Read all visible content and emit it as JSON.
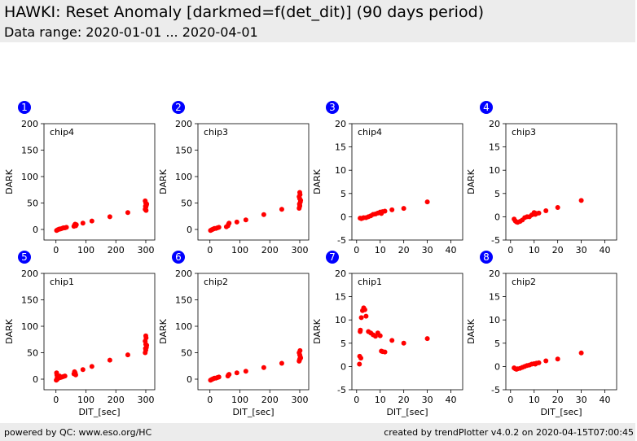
{
  "header": {
    "title": "HAWKI: Reset Anomaly [darkmed=f(det_dit)] (90 days period)",
    "subtitle": "Data range: 2020-01-01 ... 2020-04-01"
  },
  "footer": {
    "left": "powered by QC: www.eso.org/HC",
    "right": "created by trendPlotter v4.0.2 on 2020-04-15T07:00:45"
  },
  "colors": {
    "points": "#ff0000",
    "badge": "#0000ff",
    "header_bg": "#ececec"
  },
  "chart_data": [
    {
      "panel": "1",
      "type": "scatter",
      "label": "chip4",
      "xlabel": "",
      "ylabel": "DARK",
      "xlim": [
        -40,
        330
      ],
      "ylim": [
        -20,
        200
      ],
      "xticks": [
        0,
        100,
        200,
        300
      ],
      "yticks": [
        0,
        50,
        100,
        150,
        200
      ],
      "points": [
        [
          2,
          -2
        ],
        [
          5,
          -1
        ],
        [
          8,
          0
        ],
        [
          12,
          1
        ],
        [
          15,
          1
        ],
        [
          20,
          2
        ],
        [
          25,
          3
        ],
        [
          30,
          3
        ],
        [
          35,
          4
        ],
        [
          60,
          6
        ],
        [
          62,
          8
        ],
        [
          64,
          10
        ],
        [
          66,
          7
        ],
        [
          68,
          9
        ],
        [
          90,
          12
        ],
        [
          120,
          16
        ],
        [
          180,
          24
        ],
        [
          240,
          32
        ],
        [
          298,
          38
        ],
        [
          300,
          42
        ],
        [
          302,
          46
        ],
        [
          300,
          50
        ],
        [
          298,
          54
        ],
        [
          301,
          36
        ],
        [
          303,
          48
        ],
        [
          299,
          44
        ]
      ]
    },
    {
      "panel": "2",
      "type": "scatter",
      "label": "chip3",
      "xlabel": "",
      "ylabel": "DARK",
      "xlim": [
        -40,
        330
      ],
      "ylim": [
        -20,
        200
      ],
      "xticks": [
        0,
        100,
        200,
        300
      ],
      "yticks": [
        0,
        50,
        100,
        150,
        200
      ],
      "points": [
        [
          2,
          -2
        ],
        [
          5,
          -1
        ],
        [
          8,
          0
        ],
        [
          12,
          1
        ],
        [
          15,
          2
        ],
        [
          20,
          2
        ],
        [
          25,
          3
        ],
        [
          30,
          4
        ],
        [
          55,
          5
        ],
        [
          60,
          7
        ],
        [
          62,
          10
        ],
        [
          64,
          12
        ],
        [
          90,
          14
        ],
        [
          120,
          18
        ],
        [
          180,
          28
        ],
        [
          240,
          38
        ],
        [
          298,
          40
        ],
        [
          300,
          46
        ],
        [
          302,
          52
        ],
        [
          300,
          58
        ],
        [
          298,
          62
        ],
        [
          301,
          66
        ],
        [
          300,
          70
        ],
        [
          303,
          55
        ],
        [
          299,
          48
        ],
        [
          300,
          44
        ]
      ]
    },
    {
      "panel": "3",
      "type": "scatter",
      "label": "chip4",
      "xlabel": "",
      "ylabel": "DARK",
      "xlim": [
        -2,
        45
      ],
      "ylim": [
        -5,
        20
      ],
      "xticks": [
        0,
        10,
        20,
        30,
        40
      ],
      "yticks": [
        -5,
        0,
        5,
        10,
        15,
        20
      ],
      "points": [
        [
          1.5,
          -0.3
        ],
        [
          2,
          -0.4
        ],
        [
          2.5,
          -0.3
        ],
        [
          3,
          -0.2
        ],
        [
          4,
          -0.2
        ],
        [
          5,
          0
        ],
        [
          6,
          0.2
        ],
        [
          7,
          0.5
        ],
        [
          8,
          0.6
        ],
        [
          9,
          0.8
        ],
        [
          10,
          1.0
        ],
        [
          10.5,
          0.7
        ],
        [
          11,
          1.1
        ],
        [
          12,
          1.2
        ],
        [
          15,
          1.5
        ],
        [
          20,
          1.8
        ],
        [
          30,
          3.2
        ]
      ]
    },
    {
      "panel": "4",
      "type": "scatter",
      "label": "chip3",
      "xlabel": "",
      "ylabel": "DARK",
      "xlim": [
        -2,
        45
      ],
      "ylim": [
        -5,
        20
      ],
      "xticks": [
        0,
        10,
        20,
        30,
        40
      ],
      "yticks": [
        -5,
        0,
        5,
        10,
        15,
        20
      ],
      "points": [
        [
          1.5,
          -0.5
        ],
        [
          2,
          -0.9
        ],
        [
          2.5,
          -1.1
        ],
        [
          3,
          -1.2
        ],
        [
          4,
          -1.0
        ],
        [
          5,
          -0.7
        ],
        [
          6,
          -0.2
        ],
        [
          7,
          0
        ],
        [
          8,
          0
        ],
        [
          9,
          0.4
        ],
        [
          10,
          0.9
        ],
        [
          10.5,
          0.5
        ],
        [
          11,
          0.7
        ],
        [
          12,
          0.8
        ],
        [
          15,
          1.3
        ],
        [
          20,
          2.0
        ],
        [
          30,
          3.5
        ]
      ]
    },
    {
      "panel": "5",
      "type": "scatter",
      "label": "chip1",
      "xlabel": "DIT_[sec]",
      "ylabel": "DARK",
      "xlim": [
        -40,
        330
      ],
      "ylim": [
        -20,
        200
      ],
      "xticks": [
        0,
        100,
        200,
        300
      ],
      "yticks": [
        0,
        50,
        100,
        150,
        200
      ],
      "points": [
        [
          1,
          -2
        ],
        [
          2,
          12
        ],
        [
          3,
          8
        ],
        [
          4,
          3
        ],
        [
          5,
          0
        ],
        [
          6,
          5
        ],
        [
          8,
          2
        ],
        [
          10,
          4
        ],
        [
          12,
          6
        ],
        [
          15,
          3
        ],
        [
          20,
          4
        ],
        [
          25,
          5
        ],
        [
          30,
          6
        ],
        [
          60,
          10
        ],
        [
          62,
          14
        ],
        [
          64,
          12
        ],
        [
          66,
          8
        ],
        [
          90,
          18
        ],
        [
          120,
          24
        ],
        [
          180,
          36
        ],
        [
          240,
          46
        ],
        [
          298,
          50
        ],
        [
          300,
          55
        ],
        [
          302,
          60
        ],
        [
          300,
          66
        ],
        [
          298,
          72
        ],
        [
          301,
          78
        ],
        [
          300,
          82
        ],
        [
          303,
          64
        ],
        [
          299,
          58
        ]
      ]
    },
    {
      "panel": "6",
      "type": "scatter",
      "label": "chip2",
      "xlabel": "DIT_[sec]",
      "ylabel": "DARK",
      "xlim": [
        -40,
        330
      ],
      "ylim": [
        -20,
        200
      ],
      "xticks": [
        0,
        100,
        200,
        300
      ],
      "yticks": [
        0,
        50,
        100,
        150,
        200
      ],
      "points": [
        [
          2,
          -2
        ],
        [
          5,
          -1
        ],
        [
          8,
          0
        ],
        [
          12,
          1
        ],
        [
          15,
          2
        ],
        [
          20,
          2
        ],
        [
          25,
          3
        ],
        [
          30,
          4
        ],
        [
          60,
          6
        ],
        [
          62,
          8
        ],
        [
          64,
          9
        ],
        [
          90,
          12
        ],
        [
          120,
          15
        ],
        [
          180,
          22
        ],
        [
          240,
          30
        ],
        [
          298,
          34
        ],
        [
          300,
          38
        ],
        [
          302,
          42
        ],
        [
          300,
          46
        ],
        [
          298,
          50
        ],
        [
          301,
          54
        ],
        [
          303,
          40
        ],
        [
          299,
          36
        ]
      ]
    },
    {
      "panel": "7",
      "type": "scatter",
      "label": "chip1",
      "xlabel": "DIT_[sec]",
      "ylabel": "DARK",
      "xlim": [
        -2,
        45
      ],
      "ylim": [
        -5,
        20
      ],
      "xticks": [
        0,
        10,
        20,
        30,
        40
      ],
      "yticks": [
        -5,
        0,
        5,
        10,
        15,
        20
      ],
      "points": [
        [
          1.2,
          0.5
        ],
        [
          1.3,
          2.2
        ],
        [
          1.5,
          7.5
        ],
        [
          1.6,
          7.8
        ],
        [
          1.8,
          1.8
        ],
        [
          2,
          10.5
        ],
        [
          2.5,
          12
        ],
        [
          3,
          12.6
        ],
        [
          3.5,
          12.2
        ],
        [
          4,
          10.8
        ],
        [
          5,
          7.5
        ],
        [
          6,
          7.2
        ],
        [
          7,
          6.8
        ],
        [
          8,
          6.5
        ],
        [
          9,
          7.2
        ],
        [
          10,
          6.6
        ],
        [
          10.5,
          3.3
        ],
        [
          11,
          3.2
        ],
        [
          12,
          3.1
        ],
        [
          15,
          5.6
        ],
        [
          20,
          5.0
        ],
        [
          30,
          6.0
        ]
      ]
    },
    {
      "panel": "8",
      "type": "scatter",
      "label": "chip2",
      "xlabel": "DIT_[sec]",
      "ylabel": "DARK",
      "xlim": [
        -2,
        45
      ],
      "ylim": [
        -5,
        20
      ],
      "xticks": [
        0,
        10,
        20,
        30,
        40
      ],
      "yticks": [
        -5,
        0,
        5,
        10,
        15,
        20
      ],
      "points": [
        [
          1.5,
          -0.3
        ],
        [
          2,
          -0.5
        ],
        [
          2.5,
          -0.6
        ],
        [
          3,
          -0.5
        ],
        [
          4,
          -0.4
        ],
        [
          5,
          -0.2
        ],
        [
          6,
          0
        ],
        [
          7,
          0.2
        ],
        [
          8,
          0.3
        ],
        [
          9,
          0.5
        ],
        [
          10,
          0.6
        ],
        [
          10.5,
          0.5
        ],
        [
          11,
          0.7
        ],
        [
          12,
          0.8
        ],
        [
          15,
          1.2
        ],
        [
          20,
          1.6
        ],
        [
          30,
          2.9
        ]
      ]
    }
  ]
}
